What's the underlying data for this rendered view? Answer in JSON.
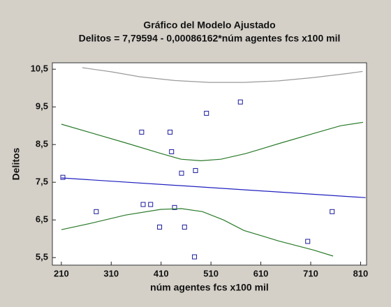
{
  "chart_data": {
    "type": "scatter",
    "title": "Gráfico del Modelo Ajustado",
    "subtitle": "Delitos = 7,79594 - 0,00086162*núm agentes fcs x100 mil",
    "x_label": "núm agentes fcs x100 mil",
    "y_label": "Delitos",
    "xlim": [
      192,
      822
    ],
    "ylim": [
      5.3,
      10.67
    ],
    "xticks": [
      210,
      310,
      410,
      510,
      610,
      710,
      810
    ],
    "yticks": [
      {
        "value": 5.5,
        "label": "5,5"
      },
      {
        "value": 6.5,
        "label": "6,5"
      },
      {
        "value": 7.5,
        "label": "7,5"
      },
      {
        "value": 8.5,
        "label": "8,5"
      },
      {
        "value": 9.5,
        "label": "9,5"
      },
      {
        "value": 10.5,
        "label": "10,5"
      }
    ],
    "series": [
      {
        "mode": "markers",
        "color": "#1a1a9c",
        "x": [
          213,
          280,
          371,
          374,
          389,
          407,
          428,
          431,
          437,
          451,
          457,
          477,
          479,
          501,
          569,
          704,
          753
        ],
        "values": [
          7.63,
          6.72,
          8.83,
          6.91,
          6.91,
          6.31,
          8.83,
          8.31,
          6.83,
          7.74,
          6.31,
          5.52,
          7.81,
          9.33,
          9.63,
          5.93,
          6.72
        ]
      },
      {
        "mode": "line",
        "color": "#2020c0",
        "x": [
          210,
          820
        ],
        "values": [
          7.615,
          7.09
        ]
      },
      {
        "mode": "line",
        "color": "#2a7a2a",
        "x": [
          210,
          270,
          340,
          410,
          450,
          490,
          530,
          580,
          650,
          720,
          770,
          815
        ],
        "values": [
          9.04,
          8.81,
          8.54,
          8.26,
          8.11,
          8.07,
          8.11,
          8.26,
          8.54,
          8.81,
          9.0,
          9.09
        ]
      },
      {
        "mode": "line",
        "color": "#2a7a2a",
        "x": [
          210,
          269,
          339,
          409,
          451,
          493,
          535,
          576,
          646,
          716,
          755
        ],
        "values": [
          6.24,
          6.41,
          6.63,
          6.78,
          6.8,
          6.72,
          6.5,
          6.22,
          5.94,
          5.7,
          5.54
        ]
      },
      {
        "mode": "line",
        "color": "#9a9a9a",
        "x": [
          252,
          311,
          367,
          437,
          507,
          576,
          646,
          716,
          786,
          814
        ],
        "values": [
          10.54,
          10.43,
          10.3,
          10.2,
          10.15,
          10.15,
          10.19,
          10.28,
          10.39,
          10.44
        ]
      }
    ]
  }
}
